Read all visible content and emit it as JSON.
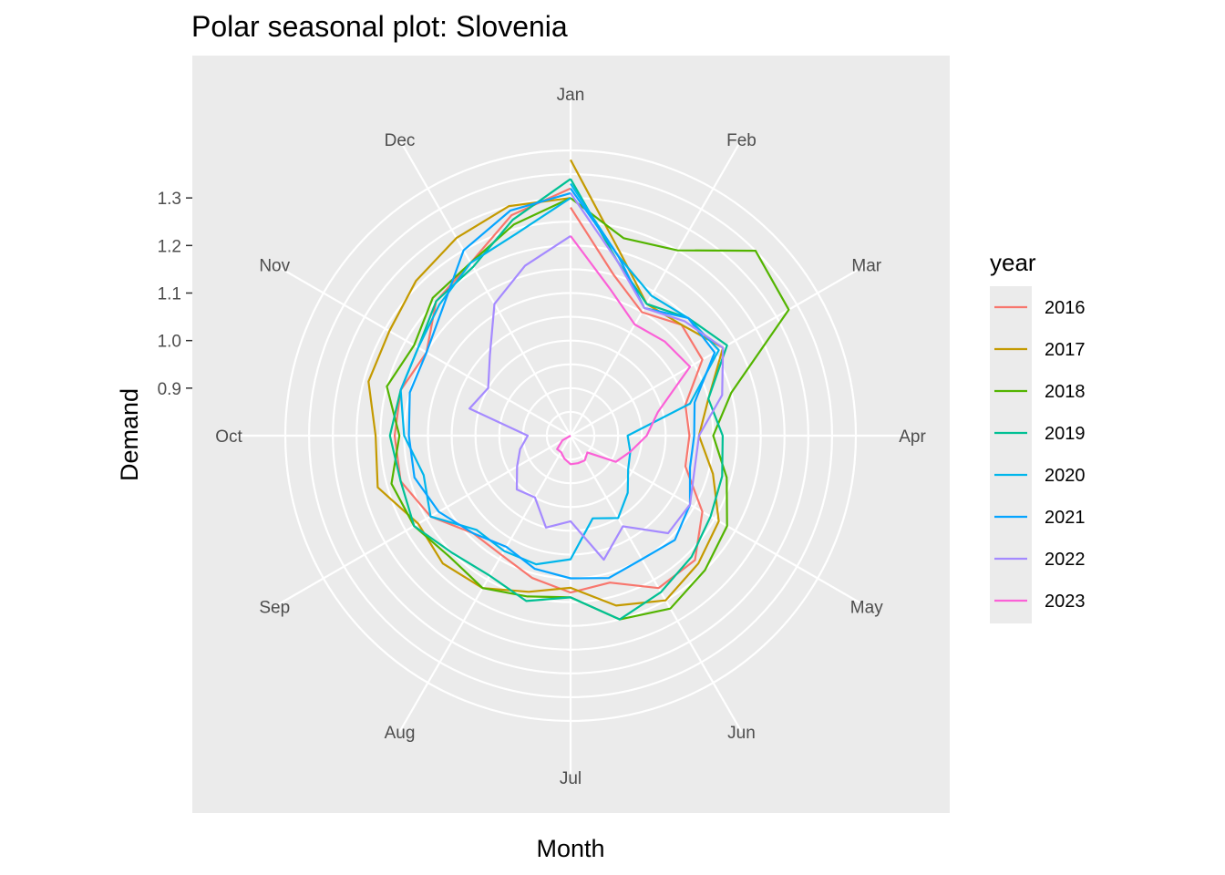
{
  "chart_data": {
    "type": "line",
    "coord": "polar",
    "title": "Polar seasonal plot: Slovenia",
    "xlabel": "Month",
    "ylabel": "Demand",
    "ylim": [
      0.8,
      1.4
    ],
    "yticks": [
      "0.9",
      "1.0",
      "1.1",
      "1.2",
      "1.3"
    ],
    "ytick_values": [
      0.9,
      1.0,
      1.1,
      1.2,
      1.3
    ],
    "categories": [
      "Jan",
      "Feb",
      "Mar",
      "Apr",
      "May",
      "Jun",
      "Jul",
      "Aug",
      "Sep",
      "Oct",
      "Nov",
      "Dec"
    ],
    "grid": true,
    "legend": {
      "title": "year",
      "position": "right"
    },
    "series": [
      {
        "name": "2016",
        "color": "#F8766D",
        "points": [
          [
            0,
            1.28
          ],
          [
            0.5,
            1.15
          ],
          [
            1,
            1.1
          ],
          [
            1.5,
            1.13
          ],
          [
            2,
            1.12
          ],
          [
            2.5,
            1.05
          ],
          [
            3,
            1.05
          ],
          [
            3.5,
            1.05
          ],
          [
            4,
            1.12
          ],
          [
            4.5,
            1.17
          ],
          [
            5,
            1.17
          ],
          [
            5.5,
            1.12
          ],
          [
            6,
            1.13
          ],
          [
            6.5,
            1.11
          ],
          [
            7,
            1.09
          ],
          [
            7.5,
            1.09
          ],
          [
            8,
            1.14
          ],
          [
            8.5,
            1.17
          ],
          [
            9,
            1.17
          ],
          [
            9.5,
            1.17
          ],
          [
            10,
            1.15
          ],
          [
            10.5,
            1.2
          ],
          [
            11,
            1.22
          ],
          [
            11.5,
            1.28
          ],
          [
            12,
            1.32
          ]
        ]
      },
      {
        "name": "2017",
        "color": "#C49A00",
        "points": [
          [
            0,
            1.38
          ],
          [
            0.5,
            1.2
          ],
          [
            1,
            1.12
          ],
          [
            1.5,
            1.13
          ],
          [
            2,
            1.17
          ],
          [
            2.5,
            1.1
          ],
          [
            3,
            1.07
          ],
          [
            3.5,
            1.11
          ],
          [
            4,
            1.16
          ],
          [
            4.5,
            1.18
          ],
          [
            5,
            1.2
          ],
          [
            5.5,
            1.17
          ],
          [
            6,
            1.12
          ],
          [
            6.5,
            1.14
          ],
          [
            7,
            1.17
          ],
          [
            7.5,
            1.18
          ],
          [
            8,
            1.17
          ],
          [
            8.5,
            1.22
          ],
          [
            9,
            1.21
          ],
          [
            9.5,
            1.24
          ],
          [
            10,
            1.24
          ],
          [
            10.5,
            1.26
          ],
          [
            11,
            1.28
          ],
          [
            11.5,
            1.3
          ],
          [
            12,
            1.3
          ]
        ]
      },
      {
        "name": "2018",
        "color": "#53B400",
        "points": [
          [
            0,
            1.3
          ],
          [
            0.5,
            1.23
          ],
          [
            1,
            1.25
          ],
          [
            1.5,
            1.35
          ],
          [
            2,
            1.33
          ],
          [
            2.5,
            1.15
          ],
          [
            3,
            1.1
          ],
          [
            3.5,
            1.14
          ],
          [
            4,
            1.18
          ],
          [
            4.5,
            1.2
          ],
          [
            5,
            1.22
          ],
          [
            5.5,
            1.2
          ],
          [
            6,
            1.14
          ],
          [
            6.5,
            1.15
          ],
          [
            7,
            1.17
          ],
          [
            7.5,
            1.16
          ],
          [
            8,
            1.18
          ],
          [
            8.5,
            1.19
          ],
          [
            9,
            1.16
          ],
          [
            9.5,
            1.2
          ],
          [
            10,
            1.18
          ],
          [
            10.5,
            1.21
          ],
          [
            11,
            1.22
          ],
          [
            11.5,
            1.26
          ],
          [
            12,
            1.3
          ]
        ]
      },
      {
        "name": "2019",
        "color": "#00C094",
        "points": [
          [
            0,
            1.34
          ],
          [
            0.5,
            1.18
          ],
          [
            1,
            1.12
          ],
          [
            1.5,
            1.15
          ],
          [
            2,
            1.18
          ],
          [
            2.5,
            1.1
          ],
          [
            3,
            1.12
          ],
          [
            3.5,
            1.13
          ],
          [
            4,
            1.14
          ],
          [
            4.5,
            1.16
          ],
          [
            5,
            1.18
          ],
          [
            5.5,
            1.2
          ],
          [
            6,
            1.14
          ],
          [
            6.5,
            1.16
          ],
          [
            7,
            1.14
          ],
          [
            7.5,
            1.15
          ],
          [
            8,
            1.18
          ],
          [
            8.5,
            1.17
          ],
          [
            9,
            1.18
          ],
          [
            9.5,
            1.17
          ],
          [
            10,
            1.17
          ],
          [
            10.5,
            1.2
          ],
          [
            11,
            1.21
          ],
          [
            11.5,
            1.27
          ],
          [
            12,
            1.34
          ]
        ]
      },
      {
        "name": "2020",
        "color": "#00B6EB",
        "points": [
          [
            0,
            1.33
          ],
          [
            0.5,
            1.19
          ],
          [
            1,
            1.14
          ],
          [
            1.5,
            1.15
          ],
          [
            2,
            1.16
          ],
          [
            2.5,
            1.06
          ],
          [
            3,
            0.92
          ],
          [
            3.5,
            0.93
          ],
          [
            4,
            0.94
          ],
          [
            4.5,
            0.97
          ],
          [
            5,
            1.0
          ],
          [
            5.5,
            0.98
          ],
          [
            6,
            1.06
          ],
          [
            6.5,
            1.08
          ],
          [
            7,
            1.08
          ],
          [
            7.5,
            1.08
          ],
          [
            8,
            1.14
          ],
          [
            8.5,
            1.12
          ],
          [
            9,
            1.15
          ],
          [
            9.5,
            1.17
          ],
          [
            10,
            1.17
          ],
          [
            10.5,
            1.19
          ],
          [
            11,
            1.22
          ],
          [
            11.5,
            1.24
          ],
          [
            12,
            1.3
          ]
        ]
      },
      {
        "name": "2021",
        "color": "#06A4FF",
        "points": [
          [
            0,
            1.32
          ],
          [
            0.5,
            1.19
          ],
          [
            1,
            1.11
          ],
          [
            1.5,
            1.15
          ],
          [
            2,
            1.15
          ],
          [
            2.5,
            1.07
          ],
          [
            3,
            1.06
          ],
          [
            3.5,
            1.06
          ],
          [
            4,
            1.09
          ],
          [
            4.5,
            1.11
          ],
          [
            5,
            1.1
          ],
          [
            5.5,
            1.11
          ],
          [
            6,
            1.1
          ],
          [
            6.5,
            1.09
          ],
          [
            7,
            1.07
          ],
          [
            7.5,
            1.09
          ],
          [
            8,
            1.12
          ],
          [
            8.5,
            1.14
          ],
          [
            9,
            1.14
          ],
          [
            9.5,
            1.15
          ],
          [
            10,
            1.15
          ],
          [
            10.5,
            1.18
          ],
          [
            11,
            1.25
          ],
          [
            11.5,
            1.29
          ],
          [
            12,
            1.31
          ]
        ]
      },
      {
        "name": "2022",
        "color": "#A58AFF",
        "points": [
          [
            0,
            1.31
          ],
          [
            0.5,
            1.18
          ],
          [
            1,
            1.11
          ],
          [
            1.5,
            1.14
          ],
          [
            2,
            1.17
          ],
          [
            2.5,
            1.13
          ],
          [
            3,
            1.07
          ],
          [
            3.5,
            1.07
          ],
          [
            4,
            1.09
          ],
          [
            4.5,
            1.09
          ],
          [
            5,
            1.02
          ],
          [
            5.5,
            1.07
          ],
          [
            6,
            0.98
          ],
          [
            6.5,
            1.0
          ],
          [
            7,
            0.95
          ],
          [
            7.5,
            0.96
          ],
          [
            8,
            0.93
          ],
          [
            8.5,
            0.91
          ],
          [
            9,
            0.89
          ],
          [
            9.5,
            1.02
          ],
          [
            10,
            1.0
          ],
          [
            10.5,
            1.04
          ],
          [
            11,
            1.12
          ],
          [
            11.5,
            1.17
          ],
          [
            12,
            1.22
          ]
        ]
      },
      {
        "name": "2023",
        "color": "#FB61D7",
        "points": [
          [
            0,
            1.22
          ],
          [
            0.5,
            1.12
          ],
          [
            1,
            1.07
          ],
          [
            1.5,
            1.08
          ],
          [
            2,
            1.09
          ],
          [
            2.5,
            0.99
          ],
          [
            3,
            0.96
          ],
          [
            3.5,
            0.93
          ],
          [
            4,
            0.91
          ],
          [
            4.5,
            0.85
          ],
          [
            5,
            0.86
          ],
          [
            5.5,
            0.86
          ],
          [
            6,
            0.86
          ],
          [
            6.5,
            0.85
          ],
          [
            7,
            0.84
          ],
          [
            7.5,
            0.84
          ],
          [
            8,
            0.82
          ],
          [
            8.5,
            0.8
          ],
          [
            9,
            0.8
          ]
        ]
      }
    ]
  }
}
